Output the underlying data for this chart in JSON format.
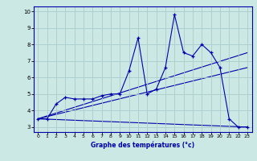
{
  "xlabel": "Graphe des températures (°c)",
  "background_color": "#cce8e4",
  "line_color": "#0000aa",
  "grid_color": "#aacccc",
  "xlim": [
    -0.5,
    23.5
  ],
  "ylim": [
    2.7,
    10.3
  ],
  "xticks": [
    0,
    1,
    2,
    3,
    4,
    5,
    6,
    7,
    8,
    9,
    10,
    11,
    12,
    13,
    14,
    15,
    16,
    17,
    18,
    19,
    20,
    21,
    22,
    23
  ],
  "yticks": [
    3,
    4,
    5,
    6,
    7,
    8,
    9,
    10
  ],
  "main_x": [
    0,
    1,
    2,
    3,
    4,
    5,
    6,
    7,
    8,
    9,
    10,
    11,
    12,
    13,
    14,
    15,
    16,
    17,
    18,
    19,
    20,
    21,
    22,
    23
  ],
  "main_y": [
    3.5,
    3.5,
    4.4,
    4.8,
    4.7,
    4.7,
    4.7,
    4.9,
    5.0,
    5.0,
    6.4,
    8.4,
    5.0,
    5.3,
    6.6,
    9.8,
    7.5,
    7.3,
    8.0,
    7.5,
    6.6,
    3.5,
    3.0,
    3.0
  ],
  "trend_lines": [
    {
      "x": [
        0,
        23
      ],
      "y": [
        3.5,
        3.0
      ]
    },
    {
      "x": [
        0,
        23
      ],
      "y": [
        3.5,
        7.5
      ]
    },
    {
      "x": [
        0,
        23
      ],
      "y": [
        3.5,
        6.6
      ]
    }
  ]
}
